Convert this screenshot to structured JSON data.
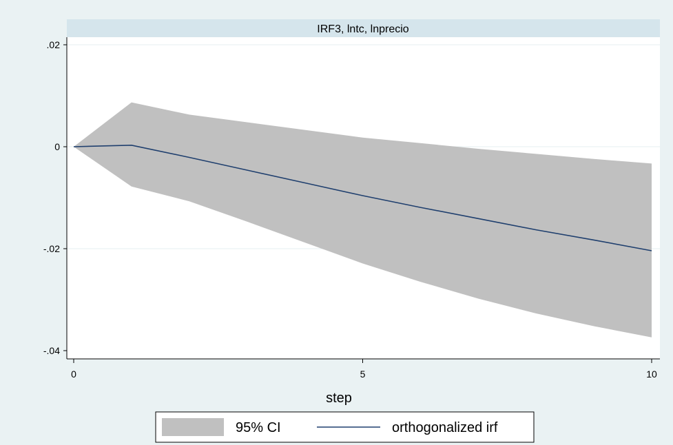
{
  "chart_data": {
    "type": "line",
    "title": "IRF3, lntc, lnprecio",
    "xlabel": "step",
    "ylabel": "",
    "xlim": [
      0,
      10
    ],
    "ylim": [
      -0.04,
      0.02
    ],
    "x_ticks": [
      0,
      5,
      10
    ],
    "x_tick_labels": [
      "0",
      "5",
      "10"
    ],
    "y_ticks": [
      0.02,
      0,
      -0.02,
      -0.04
    ],
    "y_tick_labels": [
      ".02",
      "0",
      "-.02",
      "-.04"
    ],
    "grid": true,
    "legend_position": "bottom",
    "x": [
      0,
      1,
      2,
      3,
      4,
      5,
      6,
      7,
      8,
      9,
      10
    ],
    "series": [
      {
        "name": "95% CI",
        "kind": "band",
        "color": "#c0c0c0",
        "lower": [
          0,
          -0.0078,
          -0.0107,
          -0.0147,
          -0.0188,
          -0.0229,
          -0.0265,
          -0.0298,
          -0.0327,
          -0.0352,
          -0.0374
        ],
        "upper": [
          0,
          0.0087,
          0.0063,
          0.0048,
          0.0033,
          0.0018,
          0.0007,
          -0.0004,
          -0.0014,
          -0.0024,
          -0.0033
        ]
      },
      {
        "name": "orthogonalized irf",
        "kind": "line",
        "color": "#1f3f6e",
        "values": [
          0,
          0.0003,
          -0.0021,
          -0.0046,
          -0.0071,
          -0.0096,
          -0.0119,
          -0.0141,
          -0.0163,
          -0.0183,
          -0.0204
        ]
      }
    ]
  }
}
